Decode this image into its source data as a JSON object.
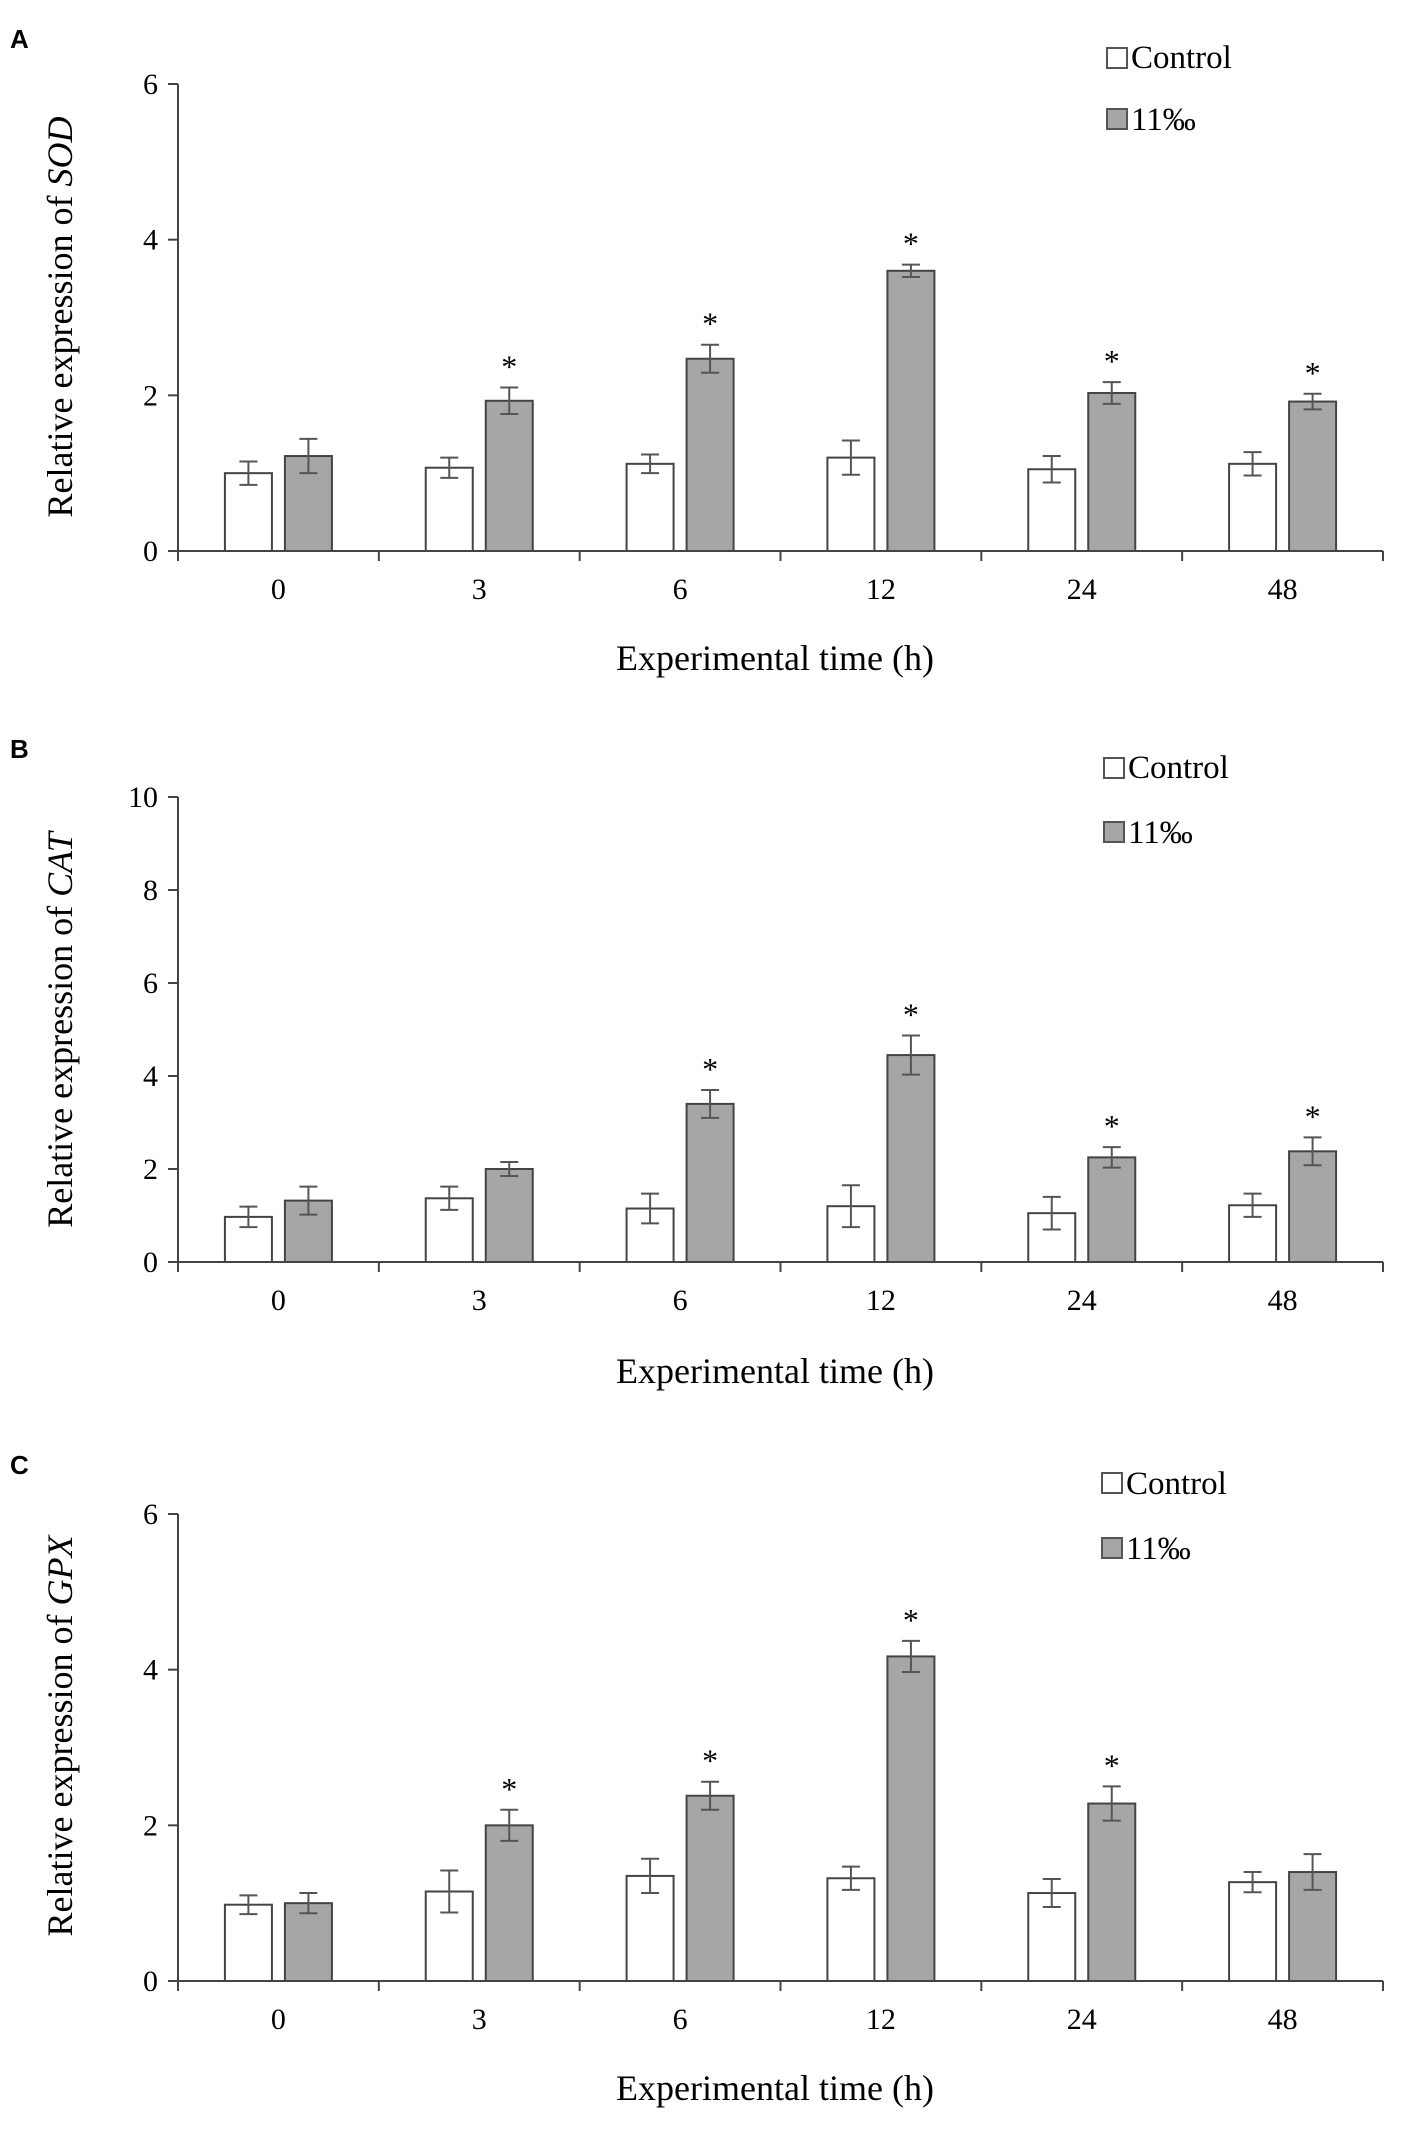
{
  "chart_data": [
    {
      "panel": "A",
      "type": "bar",
      "categories": [
        "0",
        "3",
        "6",
        "12",
        "24",
        "48"
      ],
      "xlabel": "Experimental time (h)",
      "ylabel_prefix": "Relative expression of ",
      "ylabel_gene": "SOD",
      "ylim": [
        0,
        6
      ],
      "yticks": [
        "0",
        "2",
        "4",
        "6"
      ],
      "series": [
        {
          "name": "Control",
          "color": "#ffffff",
          "values": [
            1.0,
            1.07,
            1.12,
            1.2,
            1.05,
            1.12
          ],
          "errors": [
            0.15,
            0.13,
            0.12,
            0.22,
            0.17,
            0.15
          ]
        },
        {
          "name": "11‰",
          "color": "#a6a6a6",
          "values": [
            1.22,
            1.93,
            2.47,
            3.6,
            2.03,
            1.92
          ],
          "errors": [
            0.22,
            0.17,
            0.18,
            0.08,
            0.14,
            0.1
          ]
        }
      ],
      "significance": [
        "",
        "*",
        "*",
        "*",
        "*",
        "*"
      ],
      "legend_position": "top-right"
    },
    {
      "panel": "B",
      "type": "bar",
      "categories": [
        "0",
        "3",
        "6",
        "12",
        "24",
        "48"
      ],
      "xlabel": "Experimental time (h)",
      "ylabel_prefix": "Relative expression of ",
      "ylabel_gene": "CAT",
      "ylim": [
        0,
        10
      ],
      "yticks": [
        "0",
        "2",
        "4",
        "6",
        "8",
        "10"
      ],
      "series": [
        {
          "name": "Control",
          "color": "#ffffff",
          "values": [
            0.97,
            1.37,
            1.15,
            1.2,
            1.05,
            1.22
          ],
          "errors": [
            0.22,
            0.25,
            0.32,
            0.45,
            0.35,
            0.25
          ]
        },
        {
          "name": "11‰",
          "color": "#a6a6a6",
          "values": [
            1.32,
            2.0,
            3.4,
            4.45,
            2.25,
            2.38
          ],
          "errors": [
            0.3,
            0.15,
            0.3,
            0.42,
            0.22,
            0.3
          ]
        }
      ],
      "significance": [
        "",
        "",
        "*",
        "*",
        "*",
        "*"
      ],
      "legend_position": "top-right"
    },
    {
      "panel": "C",
      "type": "bar",
      "categories": [
        "0",
        "3",
        "6",
        "12",
        "24",
        "48"
      ],
      "xlabel": "Experimental time (h)",
      "ylabel_prefix": "Relative expression of ",
      "ylabel_gene": "GPX",
      "ylim": [
        0,
        6
      ],
      "yticks": [
        "0",
        "2",
        "4",
        "6"
      ],
      "series": [
        {
          "name": "Control",
          "color": "#ffffff",
          "values": [
            0.98,
            1.15,
            1.35,
            1.32,
            1.13,
            1.27
          ],
          "errors": [
            0.12,
            0.27,
            0.22,
            0.15,
            0.18,
            0.13
          ]
        },
        {
          "name": "11‰",
          "color": "#a6a6a6",
          "values": [
            1.0,
            2.0,
            2.38,
            4.17,
            2.28,
            1.4
          ],
          "errors": [
            0.13,
            0.2,
            0.18,
            0.2,
            0.22,
            0.23
          ]
        }
      ],
      "significance": [
        "",
        "*",
        "*",
        "*",
        "*",
        ""
      ],
      "legend_position": "top-right"
    }
  ]
}
